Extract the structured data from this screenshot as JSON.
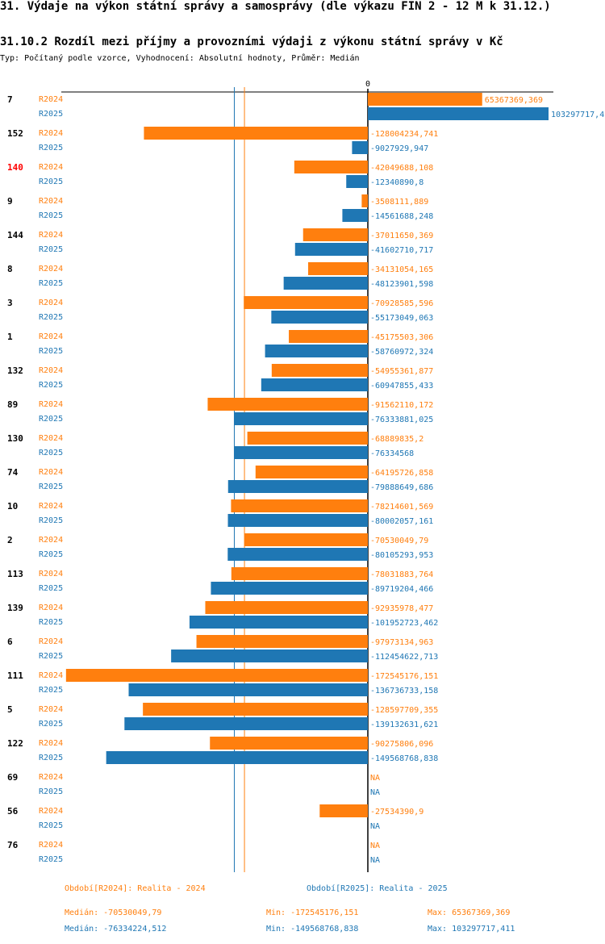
{
  "page": {
    "title": "31. Výdaje na výkon státní správy a samosprávy (dle výkazu FIN 2 - 12 M k 31.12.)",
    "subtitle": "31.10.2 Rozdíl mezi příjmy a provozními výdaji z výkonu státní správy v Kč",
    "meta": "Typ: Počítaný podle vzorce, Vyhodnocení: Absolutní hodnoty, Průměr: Medián"
  },
  "colors": {
    "r2024": "#ff7f0e",
    "r2025": "#1f77b4",
    "highlight": "#ff0000",
    "text": "#000000"
  },
  "chart_data": {
    "type": "bar",
    "orientation": "horizontal",
    "zero_label": "0",
    "xlim": [
      -172545176.151,
      103297717.411
    ],
    "highlighted_category": "140",
    "series": [
      {
        "name": "R2024",
        "color": "#ff7f0e"
      },
      {
        "name": "R2025",
        "color": "#1f77b4"
      }
    ],
    "categories": [
      {
        "id": "7",
        "R2024": {
          "value": 65367369.369,
          "label": "65367369,369"
        },
        "R2025": {
          "value": 103297717.4,
          "label": "103297717,4"
        }
      },
      {
        "id": "152",
        "R2024": {
          "value": -128004234.741,
          "label": "-128004234,741"
        },
        "R2025": {
          "value": -9027929.947,
          "label": "-9027929,947"
        }
      },
      {
        "id": "140",
        "R2024": {
          "value": -42049688.108,
          "label": "-42049688,108"
        },
        "R2025": {
          "value": -12340890.8,
          "label": "-12340890,8"
        }
      },
      {
        "id": "9",
        "R2024": {
          "value": -3508111.889,
          "label": "-3508111,889"
        },
        "R2025": {
          "value": -14561688.248,
          "label": "-14561688,248"
        }
      },
      {
        "id": "144",
        "R2024": {
          "value": -37011650.369,
          "label": "-37011650,369"
        },
        "R2025": {
          "value": -41602710.717,
          "label": "-41602710,717"
        }
      },
      {
        "id": "8",
        "R2024": {
          "value": -34131054.165,
          "label": "-34131054,165"
        },
        "R2025": {
          "value": -48123901.598,
          "label": "-48123901,598"
        }
      },
      {
        "id": "3",
        "R2024": {
          "value": -70928585.596,
          "label": "-70928585,596"
        },
        "R2025": {
          "value": -55173049.063,
          "label": "-55173049,063"
        }
      },
      {
        "id": "1",
        "R2024": {
          "value": -45175503.306,
          "label": "-45175503,306"
        },
        "R2025": {
          "value": -58760972.324,
          "label": "-58760972,324"
        }
      },
      {
        "id": "132",
        "R2024": {
          "value": -54955361.877,
          "label": "-54955361,877"
        },
        "R2025": {
          "value": -60947855.433,
          "label": "-60947855,433"
        }
      },
      {
        "id": "89",
        "R2024": {
          "value": -91562110.172,
          "label": "-91562110,172"
        },
        "R2025": {
          "value": -76333881.025,
          "label": "-76333881,025"
        }
      },
      {
        "id": "130",
        "R2024": {
          "value": -68889835.2,
          "label": "-68889835,2"
        },
        "R2025": {
          "value": -76334568,
          "label": "-76334568"
        }
      },
      {
        "id": "74",
        "R2024": {
          "value": -64195726.858,
          "label": "-64195726,858"
        },
        "R2025": {
          "value": -79888649.686,
          "label": "-79888649,686"
        }
      },
      {
        "id": "10",
        "R2024": {
          "value": -78214601.569,
          "label": "-78214601,569"
        },
        "R2025": {
          "value": -80002057.161,
          "label": "-80002057,161"
        }
      },
      {
        "id": "2",
        "R2024": {
          "value": -70530049.79,
          "label": "-70530049,79"
        },
        "R2025": {
          "value": -80105293.953,
          "label": "-80105293,953"
        }
      },
      {
        "id": "113",
        "R2024": {
          "value": -78031883.764,
          "label": "-78031883,764"
        },
        "R2025": {
          "value": -89719204.466,
          "label": "-89719204,466"
        }
      },
      {
        "id": "139",
        "R2024": {
          "value": -92935978.477,
          "label": "-92935978,477"
        },
        "R2025": {
          "value": -101952723.462,
          "label": "-101952723,462"
        }
      },
      {
        "id": "6",
        "R2024": {
          "value": -97973134.963,
          "label": "-97973134,963"
        },
        "R2025": {
          "value": -112454622.713,
          "label": "-112454622,713"
        }
      },
      {
        "id": "111",
        "R2024": {
          "value": -172545176.151,
          "label": "-172545176,151"
        },
        "R2025": {
          "value": -136736733.158,
          "label": "-136736733,158"
        }
      },
      {
        "id": "5",
        "R2024": {
          "value": -128597709.355,
          "label": "-128597709,355"
        },
        "R2025": {
          "value": -139132631.621,
          "label": "-139132631,621"
        }
      },
      {
        "id": "122",
        "R2024": {
          "value": -90275806.096,
          "label": "-90275806,096"
        },
        "R2025": {
          "value": -149568768.838,
          "label": "-149568768,838"
        }
      },
      {
        "id": "69",
        "R2024": {
          "value": null,
          "label": "NA"
        },
        "R2025": {
          "value": null,
          "label": "NA"
        }
      },
      {
        "id": "56",
        "R2024": {
          "value": -27534390.9,
          "label": "-27534390,9"
        },
        "R2025": {
          "value": null,
          "label": "NA"
        }
      },
      {
        "id": "76",
        "R2024": {
          "value": null,
          "label": "NA"
        },
        "R2025": {
          "value": null,
          "label": "NA"
        }
      }
    ],
    "median_lines": [
      {
        "series": "R2024",
        "value": -70530049.79
      },
      {
        "series": "R2025",
        "value": -76334224.512
      }
    ]
  },
  "legend": {
    "r2024": "Období[R2024]: Realita - 2024",
    "r2025": "Období[R2025]: Realita - 2025"
  },
  "stats": {
    "r2024": {
      "median": "Medián: -70530049,79",
      "min": "Min: -172545176,151",
      "max": "Max: 65367369,369"
    },
    "r2025": {
      "median": "Medián: -76334224,512",
      "min": "Min: -149568768,838",
      "max": "Max: 103297717,411"
    }
  }
}
